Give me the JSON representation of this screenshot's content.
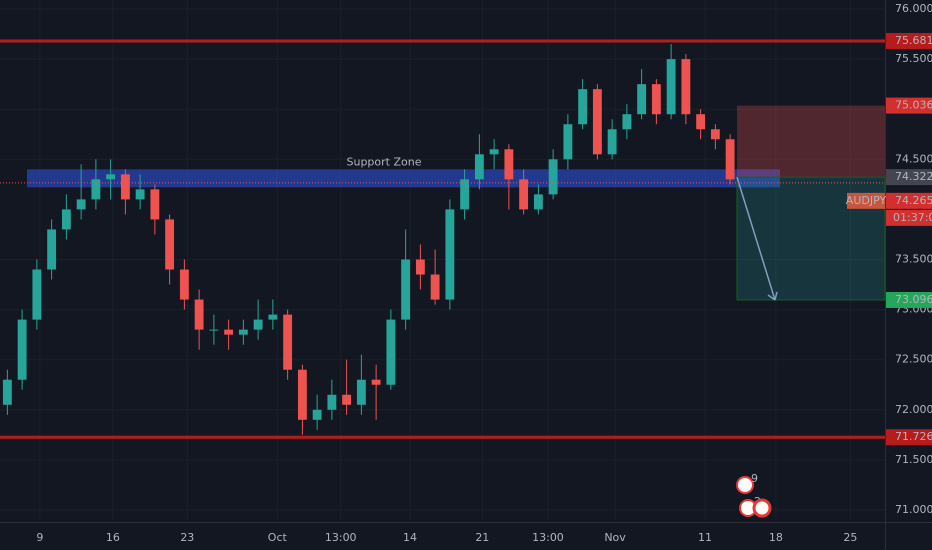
{
  "chart_data": {
    "type": "candlestick",
    "symbol": "AUDJPY",
    "countdown": "01:37:03",
    "up_color": "#26a69a",
    "down_color": "#ef5350",
    "grid": true,
    "xlim": [
      -1,
      119
    ],
    "ylim": [
      70.9,
      76.09
    ],
    "xticks": [
      {
        "value": 4.4,
        "label": "9"
      },
      {
        "value": 14.3,
        "label": "16"
      },
      {
        "value": 24.4,
        "label": "23"
      },
      {
        "value": 36.6,
        "label": "Oct"
      },
      {
        "value": 45.2,
        "label": "13:00"
      },
      {
        "value": 54.6,
        "label": "14"
      },
      {
        "value": 64.4,
        "label": "21"
      },
      {
        "value": 73.3,
        "label": "13:00"
      },
      {
        "value": 82.4,
        "label": "Nov"
      },
      {
        "value": 94.6,
        "label": "11"
      },
      {
        "value": 104.2,
        "label": "18"
      },
      {
        "value": 114.3,
        "label": "25"
      }
    ],
    "yticks": [
      {
        "value": 76,
        "label": "76.000"
      },
      {
        "value": 75.5,
        "label": "75.500"
      },
      {
        "value": 75,
        "label": "75.000"
      },
      {
        "value": 74.5,
        "label": "74.500"
      },
      {
        "value": 73.5,
        "label": "73.500"
      },
      {
        "value": 73,
        "label": "73.000"
      },
      {
        "value": 72.5,
        "label": "72.500"
      },
      {
        "value": 72,
        "label": "72.000"
      },
      {
        "value": 71.5,
        "label": "71.500"
      },
      {
        "value": 71,
        "label": "71.000"
      }
    ],
    "x": [
      0,
      2,
      4,
      6,
      8,
      10,
      12,
      14,
      16,
      18,
      20,
      22,
      24,
      26,
      28,
      30,
      32,
      34,
      36,
      38,
      40,
      42,
      44,
      46,
      48,
      50,
      52,
      54,
      56,
      58,
      60,
      62,
      64,
      66,
      68,
      70,
      72,
      74,
      76,
      78,
      80,
      82,
      84,
      86,
      88,
      90,
      92,
      94,
      96,
      98
    ],
    "open": [
      72.05,
      72.3,
      72.9,
      73.4,
      73.8,
      74.0,
      74.1,
      74.3,
      74.35,
      74.1,
      74.2,
      73.9,
      73.4,
      73.1,
      72.8,
      72.8,
      72.75,
      72.8,
      72.9,
      72.95,
      72.4,
      71.9,
      72.0,
      72.15,
      72.05,
      72.3,
      72.25,
      72.9,
      73.5,
      73.35,
      73.1,
      74.0,
      74.3,
      74.55,
      74.6,
      74.3,
      74.0,
      74.15,
      74.5,
      74.85,
      75.2,
      74.55,
      74.8,
      74.95,
      75.25,
      74.95,
      75.5,
      74.95,
      74.8,
      74.7
    ],
    "high": [
      72.4,
      73.0,
      73.5,
      73.9,
      74.15,
      74.45,
      74.5,
      74.5,
      74.4,
      74.35,
      74.25,
      73.95,
      73.5,
      73.2,
      72.95,
      72.9,
      72.9,
      73.1,
      73.1,
      73.0,
      72.45,
      72.15,
      72.3,
      72.5,
      72.55,
      72.45,
      73.0,
      73.8,
      73.65,
      73.6,
      74.1,
      74.4,
      74.75,
      74.7,
      74.65,
      74.4,
      74.25,
      74.6,
      74.95,
      75.3,
      75.25,
      74.9,
      75.05,
      75.4,
      75.3,
      75.65,
      75.55,
      75.0,
      74.85,
      74.75
    ],
    "low": [
      71.95,
      72.2,
      72.8,
      73.3,
      73.7,
      73.9,
      74.0,
      74.1,
      73.95,
      74.0,
      73.75,
      73.25,
      73.0,
      72.6,
      72.65,
      72.6,
      72.65,
      72.7,
      72.8,
      72.3,
      71.75,
      71.8,
      71.9,
      71.95,
      71.95,
      71.9,
      72.2,
      72.8,
      73.2,
      73.05,
      73.0,
      73.9,
      74.2,
      74.4,
      74.0,
      73.95,
      73.95,
      74.1,
      74.4,
      74.8,
      74.5,
      74.5,
      74.7,
      74.9,
      74.85,
      74.9,
      74.85,
      74.7,
      74.6,
      74.25
    ],
    "close": [
      72.3,
      72.9,
      73.4,
      73.8,
      74.0,
      74.1,
      74.3,
      74.35,
      74.1,
      74.2,
      73.9,
      73.4,
      73.1,
      72.8,
      72.8,
      72.75,
      72.8,
      72.9,
      72.95,
      72.4,
      71.9,
      72.0,
      72.15,
      72.05,
      72.3,
      72.25,
      72.9,
      73.5,
      73.35,
      73.1,
      74.0,
      74.3,
      74.55,
      74.6,
      74.3,
      74.0,
      74.15,
      74.5,
      74.85,
      75.2,
      74.55,
      74.8,
      74.95,
      75.25,
      74.95,
      75.5,
      74.95,
      74.8,
      74.7,
      74.3
    ],
    "resistance": 75.681,
    "support_line": 71.726,
    "support_zone": {
      "label": "Support Zone",
      "bottom": 74.22,
      "top": 74.4
    },
    "last_price": 74.265,
    "position": {
      "stop": 75.036,
      "entry": 74.322,
      "target": 73.096
    },
    "events": [
      "9",
      "2"
    ]
  }
}
